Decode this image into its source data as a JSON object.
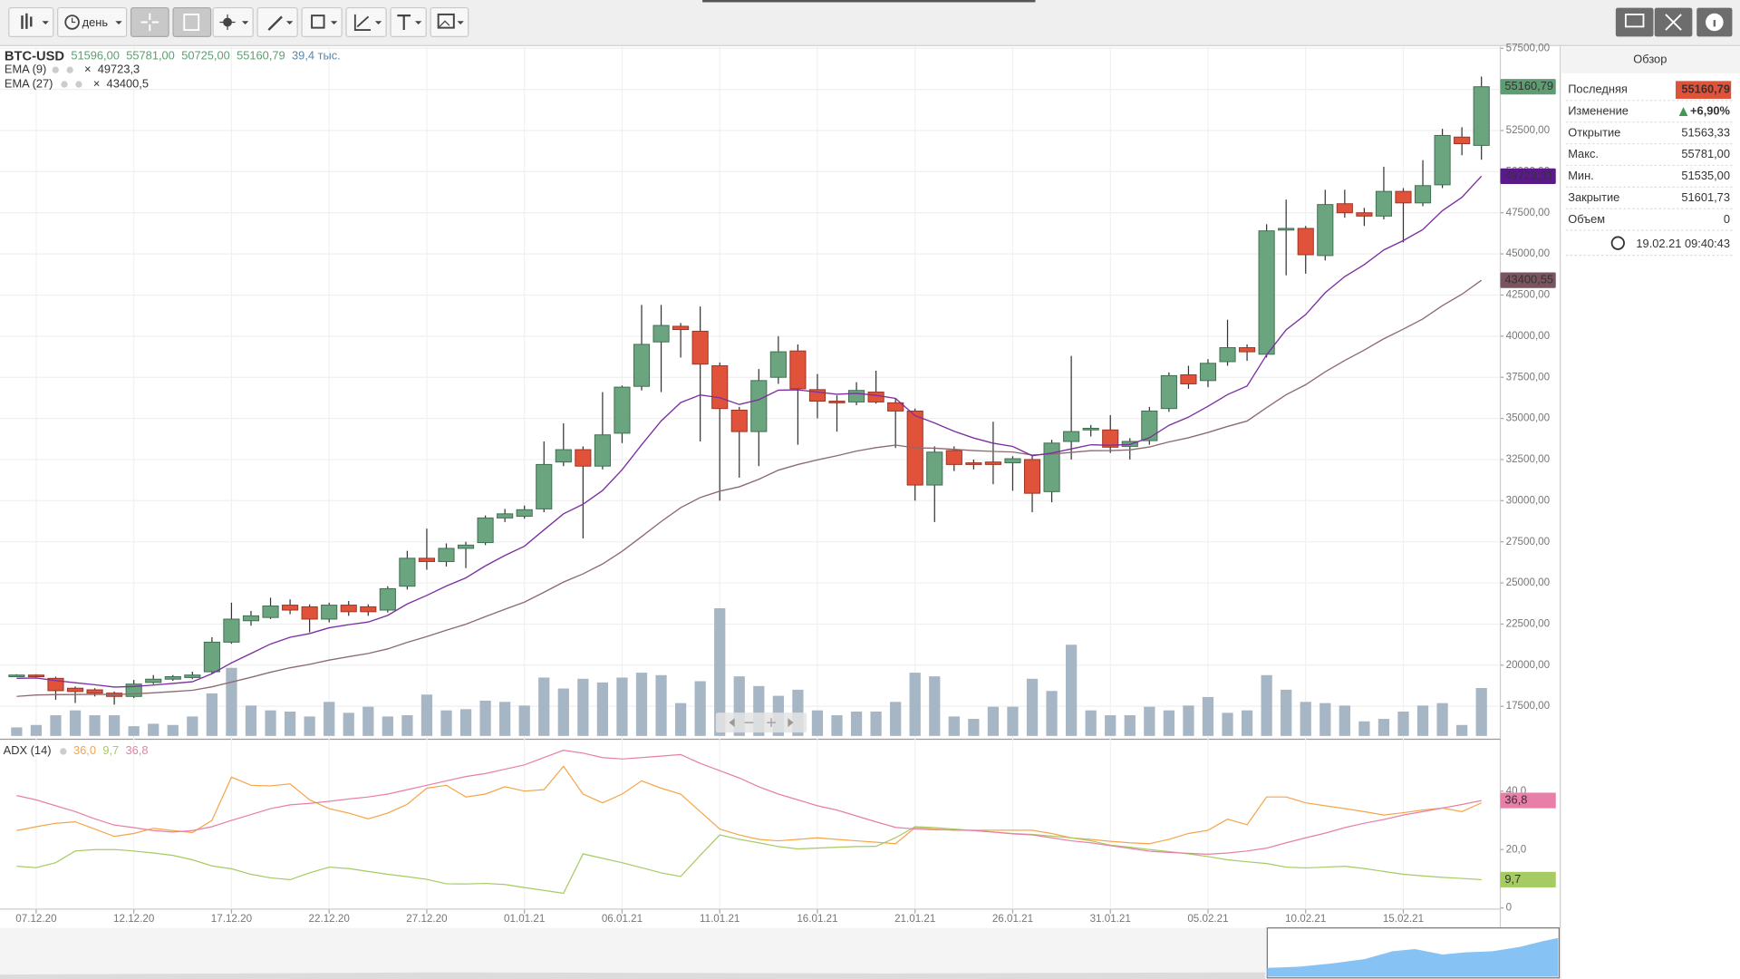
{
  "toolbar": {
    "period": "день"
  },
  "header": {
    "symbol": "BTC-USD",
    "open": "51596,00",
    "high": "55781,00",
    "low": "50725,00",
    "close": "55160,79",
    "volume": "39,4 тыс."
  },
  "indicators": [
    {
      "name": "EMA (9)",
      "value": "49723,3",
      "color": "#7b2fa0"
    },
    {
      "name": "EMA (27)",
      "value": "43400,5",
      "color": "#8c6b70"
    }
  ],
  "chart": {
    "type": "candlestick",
    "ylim": [
      15700,
      57600
    ],
    "yticks": [
      {
        "value": 17500,
        "label": "17500,00"
      },
      {
        "value": 20000,
        "label": "20000,00"
      },
      {
        "value": 22500,
        "label": "22500,00"
      },
      {
        "value": 25000,
        "label": "25000,00"
      },
      {
        "value": 27500,
        "label": "27500,00"
      },
      {
        "value": 30000,
        "label": "30000,00"
      },
      {
        "value": 32500,
        "label": "32500,00"
      },
      {
        "value": 35000,
        "label": "35000,00"
      },
      {
        "value": 37500,
        "label": "37500,00"
      },
      {
        "value": 40000,
        "label": "40000,00"
      },
      {
        "value": 42500,
        "label": "42500,00"
      },
      {
        "value": 45000,
        "label": "45000,00"
      },
      {
        "value": 47500,
        "label": "47500,00"
      },
      {
        "value": 50000,
        "label": "50000,00"
      },
      {
        "value": 52500,
        "label": "52500,00"
      },
      {
        "value": 55000,
        "label": "55000,00"
      },
      {
        "value": 57500,
        "label": "57500,00"
      }
    ],
    "xticks": [
      {
        "value": 1,
        "label": "07.12.20"
      },
      {
        "value": 6,
        "label": "12.12.20"
      },
      {
        "value": 11,
        "label": "17.12.20"
      },
      {
        "value": 16,
        "label": "22.12.20"
      },
      {
        "value": 21,
        "label": "27.12.20"
      },
      {
        "value": 26,
        "label": "01.01.21"
      },
      {
        "value": 31,
        "label": "06.01.21"
      },
      {
        "value": 36,
        "label": "11.01.21"
      },
      {
        "value": 41,
        "label": "16.01.21"
      },
      {
        "value": 46,
        "label": "21.01.21"
      },
      {
        "value": 51,
        "label": "26.01.21"
      },
      {
        "value": 56,
        "label": "31.01.21"
      },
      {
        "value": 61,
        "label": "05.02.21"
      },
      {
        "value": 66,
        "label": "10.02.21"
      },
      {
        "value": 71,
        "label": "15.02.21"
      }
    ],
    "grid": true,
    "up_color": "#6aa57f",
    "down_color": "#e0523a",
    "candles": [
      [
        19350,
        19450,
        19300,
        19400
      ],
      [
        19400,
        19450,
        19250,
        19300
      ],
      [
        19200,
        19300,
        17900,
        18450
      ],
      [
        18600,
        18700,
        17700,
        18400
      ],
      [
        18500,
        18600,
        18100,
        18300
      ],
      [
        18300,
        18400,
        17600,
        18100
      ],
      [
        18100,
        19100,
        18000,
        18850
      ],
      [
        18950,
        19400,
        18850,
        19150
      ],
      [
        19150,
        19400,
        19050,
        19300
      ],
      [
        19250,
        19600,
        19150,
        19400
      ],
      [
        19600,
        21700,
        19500,
        21400
      ],
      [
        21400,
        23800,
        21300,
        22800
      ],
      [
        22700,
        23300,
        22400,
        23000
      ],
      [
        22900,
        24100,
        22800,
        23600
      ],
      [
        23650,
        24000,
        23100,
        23350
      ],
      [
        23550,
        23700,
        22000,
        22800
      ],
      [
        22800,
        23800,
        22600,
        23650
      ],
      [
        23650,
        23900,
        23000,
        23250
      ],
      [
        23550,
        23700,
        23000,
        23250
      ],
      [
        23350,
        24800,
        23200,
        24650
      ],
      [
        24800,
        26950,
        24600,
        26500
      ],
      [
        26500,
        28300,
        25800,
        26300
      ],
      [
        26300,
        27400,
        26000,
        27100
      ],
      [
        27100,
        27500,
        25900,
        27300
      ],
      [
        27450,
        29100,
        27300,
        28950
      ],
      [
        28950,
        29500,
        28700,
        29200
      ],
      [
        29050,
        29700,
        28900,
        29450
      ],
      [
        29500,
        33600,
        29300,
        32200
      ],
      [
        32350,
        34700,
        32100,
        33100
      ],
      [
        33100,
        33300,
        27700,
        32100
      ],
      [
        32100,
        36600,
        31900,
        34000
      ],
      [
        34100,
        37000,
        33500,
        36900
      ],
      [
        36950,
        41900,
        36700,
        39500
      ],
      [
        39650,
        41900,
        36600,
        40650
      ],
      [
        40600,
        40800,
        38700,
        40400
      ],
      [
        40300,
        41800,
        33600,
        38300
      ],
      [
        38200,
        38400,
        30000,
        35600
      ],
      [
        35500,
        35700,
        31400,
        34200
      ],
      [
        34200,
        38000,
        32100,
        37300
      ],
      [
        37500,
        40000,
        37100,
        39050
      ],
      [
        39100,
        39500,
        33400,
        36800
      ],
      [
        36750,
        37700,
        35000,
        36050
      ],
      [
        36050,
        36400,
        34200,
        35950
      ],
      [
        36000,
        37200,
        35800,
        36700
      ],
      [
        36600,
        37900,
        35900,
        36000
      ],
      [
        35950,
        36200,
        33200,
        35450
      ],
      [
        35450,
        35600,
        30000,
        30950
      ],
      [
        30950,
        33300,
        28700,
        32950
      ],
      [
        33050,
        33300,
        31800,
        32200
      ],
      [
        32300,
        32500,
        31900,
        32200
      ],
      [
        32350,
        34800,
        31000,
        32200
      ],
      [
        32300,
        32700,
        30600,
        32550
      ],
      [
        32500,
        32700,
        29300,
        30450
      ],
      [
        30550,
        33700,
        29900,
        33500
      ],
      [
        33600,
        38800,
        32500,
        34200
      ],
      [
        34300,
        34600,
        33900,
        34400
      ],
      [
        34300,
        35200,
        32900,
        33250
      ],
      [
        33300,
        33800,
        32500,
        33600
      ],
      [
        33650,
        35700,
        33400,
        35450
      ],
      [
        35600,
        37800,
        35400,
        37600
      ],
      [
        37650,
        38200,
        36800,
        37100
      ],
      [
        37300,
        38600,
        36900,
        38350
      ],
      [
        38450,
        41000,
        38200,
        39300
      ],
      [
        39300,
        39500,
        38500,
        39050
      ],
      [
        38900,
        46800,
        38700,
        46400
      ],
      [
        46450,
        48300,
        43700,
        46550
      ],
      [
        46550,
        46700,
        43800,
        44950
      ],
      [
        44900,
        48900,
        44600,
        48000
      ],
      [
        48050,
        48900,
        47200,
        47500
      ],
      [
        47500,
        47800,
        46700,
        47300
      ],
      [
        47300,
        50300,
        47100,
        48800
      ],
      [
        48800,
        49000,
        45700,
        48100
      ],
      [
        48100,
        50700,
        47900,
        49150
      ],
      [
        49200,
        52600,
        49000,
        52200
      ],
      [
        52100,
        52700,
        51000,
        51700
      ],
      [
        51596,
        55781,
        50725,
        55160.79
      ]
    ],
    "volume_color": "#a7b6c4",
    "volumes": [
      7,
      9,
      17,
      21,
      17,
      17,
      8,
      10,
      9,
      16,
      35,
      56,
      25,
      21,
      20,
      16,
      28,
      19,
      24,
      16,
      17,
      34,
      21,
      22,
      29,
      28,
      25,
      48,
      39,
      47,
      44,
      48,
      52,
      50,
      27,
      45,
      105,
      49,
      41,
      33,
      38,
      21,
      17,
      20,
      20,
      28,
      52,
      49,
      16,
      14,
      24,
      24,
      47,
      37,
      75,
      21,
      17,
      17,
      24,
      21,
      25,
      32,
      19,
      21,
      50,
      38,
      28,
      27,
      25,
      12,
      14,
      20,
      25,
      27,
      9,
      39.4
    ],
    "ema9": [
      19200,
      19220,
      19070,
      18930,
      18810,
      18670,
      18700,
      18790,
      18890,
      18990,
      19480,
      20140,
      20710,
      21290,
      21700,
      21920,
      22270,
      22460,
      22620,
      23030,
      23720,
      24240,
      24810,
      25310,
      26040,
      26670,
      27230,
      28220,
      29200,
      29780,
      30620,
      31880,
      33400,
      34850,
      35960,
      36430,
      36260,
      35850,
      36140,
      36720,
      36740,
      36600,
      36470,
      36520,
      36410,
      36220,
      35170,
      34720,
      34220,
      33810,
      33490,
      33300,
      32730,
      32890,
      33150,
      33400,
      33370,
      33420,
      33820,
      34580,
      35080,
      35740,
      36450,
      36970,
      38860,
      40390,
      41310,
      42640,
      43620,
      44350,
      45240,
      45810,
      46480,
      47630,
      48440,
      49723.31
    ],
    "ema27": [
      18100,
      18190,
      18210,
      18220,
      18230,
      18220,
      18260,
      18320,
      18390,
      18470,
      18680,
      18970,
      19260,
      19570,
      19840,
      20050,
      20310,
      20520,
      20710,
      20990,
      21390,
      21740,
      22120,
      22490,
      22950,
      23400,
      23830,
      24430,
      25050,
      25550,
      26150,
      26920,
      27820,
      28730,
      29570,
      30190,
      30580,
      30840,
      31300,
      31850,
      32200,
      32480,
      32730,
      33010,
      33220,
      33380,
      33210,
      33190,
      33120,
      33050,
      32990,
      32960,
      32780,
      32830,
      32930,
      33040,
      33050,
      33090,
      33260,
      33570,
      33820,
      34150,
      34510,
      34840,
      35660,
      36440,
      37050,
      37830,
      38520,
      39150,
      39840,
      40430,
      41050,
      41850,
      42550,
      43400.55
    ],
    "price_tags": [
      {
        "value": 55160.79,
        "label": "55160,79",
        "color": "#5e9c72"
      },
      {
        "value": 49723.31,
        "label": "49723,31",
        "color": "#5b1a8a"
      },
      {
        "value": 43400.55,
        "label": "43400,55",
        "color": "#7a5560"
      }
    ]
  },
  "adx": {
    "title": "ADX (14)",
    "ylim": [
      0,
      57
    ],
    "yticks": [
      0,
      {
        "value": 20,
        "label": "20,0"
      },
      {
        "value": 40,
        "label": "40,0"
      }
    ],
    "series": [
      {
        "color": "#f5a54a",
        "label": "36,0",
        "tag": false,
        "values": [
          26.5,
          27.8,
          29,
          29.5,
          27,
          24.5,
          25.5,
          27.3,
          26.5,
          25.8,
          30,
          44.8,
          42,
          41.8,
          42.5,
          37,
          34,
          32.5,
          30.5,
          32.5,
          35.5,
          41,
          42,
          38,
          39,
          41.5,
          40,
          40.5,
          48.5,
          39,
          36,
          39,
          43.5,
          41,
          39,
          33,
          27,
          25,
          23.5,
          23,
          23.5,
          24,
          23.5,
          23,
          22.5,
          22,
          27.5,
          27,
          26.6,
          26.6,
          26.6,
          26.6,
          26.6,
          25.5,
          24,
          23.5,
          22.8,
          22.3,
          22,
          23.5,
          25.5,
          26.6,
          30.4,
          28.5,
          38,
          38,
          36,
          35,
          34,
          33,
          31.8,
          32.6,
          33.5,
          34.2,
          33,
          36
        ]
      },
      {
        "color": "#a5cb62",
        "label": "9,7",
        "tag": true,
        "values": [
          14.3,
          13.8,
          15.5,
          19.5,
          20,
          20,
          19.5,
          18.8,
          18,
          16.5,
          14.4,
          13.4,
          11.5,
          10.3,
          9.7,
          12,
          14,
          13.5,
          12.5,
          11.5,
          10.7,
          9.8,
          8.3,
          8.2,
          8.4,
          8,
          7,
          6,
          5,
          18.5,
          17,
          15.5,
          13.8,
          12,
          10.8,
          18,
          25,
          23.5,
          22.3,
          21,
          20.2,
          20.5,
          20.8,
          21,
          21.1,
          24,
          27.8,
          27.5,
          27,
          26.5,
          26,
          25.5,
          25.2,
          24.6,
          24,
          23,
          21.5,
          20.8,
          20,
          19.3,
          18.5,
          17.6,
          16.5,
          15.8,
          15.2,
          14,
          13.7,
          14,
          14.3,
          13.5,
          12.5,
          11.5,
          11,
          10.5,
          10.1,
          9.7
        ]
      },
      {
        "color": "#e77fa8",
        "label": "36,8",
        "tag": true,
        "values": [
          38.5,
          37,
          35,
          33,
          30.5,
          28.4,
          27.5,
          26.5,
          26,
          26.5,
          27.8,
          30,
          32,
          34,
          35.3,
          35.8,
          36.5,
          37.3,
          38,
          39,
          40.5,
          42,
          43.5,
          45,
          46,
          47.5,
          49,
          51.5,
          54,
          53,
          51.5,
          51,
          51.5,
          52,
          52.5,
          49.5,
          47,
          44.5,
          41.5,
          39,
          37,
          35,
          33.5,
          31.5,
          29.5,
          27.6,
          27,
          26.8,
          26.7,
          26.5,
          26,
          25.4,
          25,
          24,
          23,
          22.3,
          21.3,
          20.4,
          19.4,
          19,
          18.7,
          18.4,
          18.8,
          19.5,
          20.5,
          22.3,
          24,
          25.6,
          27.5,
          29,
          30.3,
          31.8,
          33,
          34.2,
          35.4,
          36.8
        ]
      }
    ]
  },
  "overview": {
    "title": "Обзор",
    "rows": [
      {
        "label": "Последняя",
        "value": "55160,79"
      },
      {
        "label": "Изменение",
        "value": "+6,90%"
      },
      {
        "label": "Открытие",
        "value": "51563,33"
      },
      {
        "label": "Макс.",
        "value": "55781,00"
      },
      {
        "label": "Мин.",
        "value": "51535,00"
      },
      {
        "label": "Закрытие",
        "value": "51601,73"
      },
      {
        "label": "Объем",
        "value": "0"
      }
    ],
    "time": "19.02.21 09:40:43"
  }
}
